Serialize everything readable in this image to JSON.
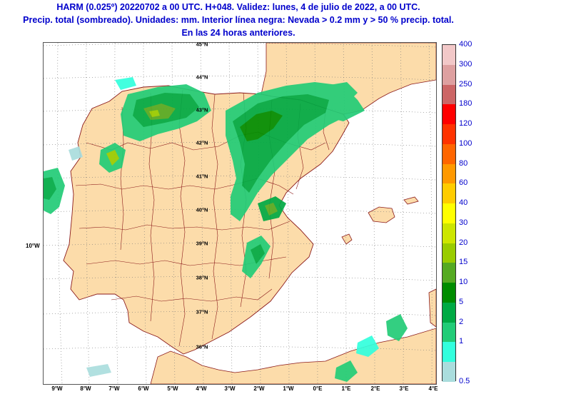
{
  "title": {
    "line1": "HARM (0.025º) 20220702 a 00 UTC. H+048. Validez: lunes, 4 de julio de 2022, a 00 UTC.",
    "line2": "Precip. total (sombreado). Unidades: mm. Interior línea negra: Nevada > 0.2 mm y > 50 % precip. total.",
    "line3": "En las 24 horas anteriores."
  },
  "axes": {
    "lon_ticks": [
      "9°W",
      "8°W",
      "7°W",
      "6°W",
      "5°W",
      "4°W",
      "3°W",
      "2°W",
      "1°W",
      "0°E",
      "1°E",
      "2°E",
      "3°E",
      "4°E"
    ],
    "lat_ticks": [
      "45°N",
      "44°N",
      "43°N",
      "42°N",
      "41°N",
      "40°N",
      "39°N",
      "38°N",
      "37°N",
      "36°N"
    ],
    "extra_lon_label": "10°W"
  },
  "legend": {
    "levels": [
      "400",
      "300",
      "250",
      "180",
      "120",
      "100",
      "80",
      "60",
      "40",
      "30",
      "20",
      "15",
      "10",
      "5",
      "2",
      "1",
      "0.5"
    ],
    "colors": [
      "#f2c8c8",
      "#dea0a0",
      "#cc6666",
      "#ff0000",
      "#ff3300",
      "#ff6600",
      "#ff9900",
      "#ffcc00",
      "#ffff00",
      "#cde600",
      "#99cc00",
      "#55aa22",
      "#008c00",
      "#00aa44",
      "#22cc77",
      "#33ffdd",
      "#aadddd"
    ]
  },
  "colors": {
    "land": "#fcdcaa",
    "sea": "#ffffff",
    "borders": "#8b1a1a",
    "title": "#0000cc"
  }
}
